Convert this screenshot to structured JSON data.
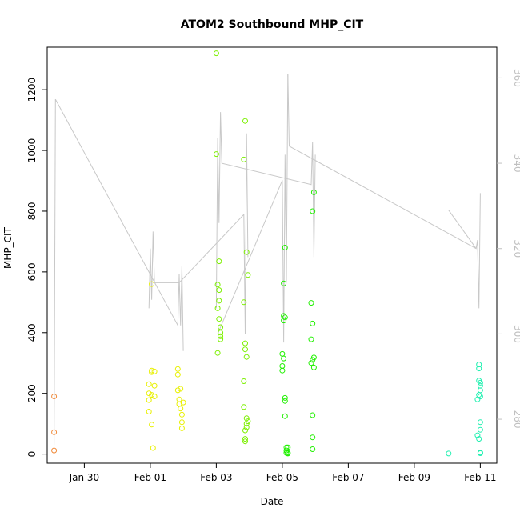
{
  "chart_data": {
    "type": "scatter",
    "title": "ATOM2 Southbound MHP_CIT",
    "xlabel": "Date",
    "ylabel": "MHP_CIT",
    "x_ticks": [
      "Jan 30",
      "Feb 01",
      "Feb 03",
      "Feb 05",
      "Feb 07",
      "Feb 09",
      "Feb 11"
    ],
    "y_ticks": [
      "0",
      "200",
      "400",
      "600",
      "800",
      "1000",
      "1200"
    ],
    "y2_ticks": [
      "280",
      "300",
      "320",
      "340",
      "360"
    ],
    "xlim": [
      "2024-01-28T21:00",
      "2024-02-11T12:00"
    ],
    "ylim": [
      -30,
      1340
    ],
    "y2lim": [
      269.7,
      367.2
    ],
    "grid": false,
    "legend": "none",
    "points": [
      {
        "x": "2024-01-29T02:00",
        "y": 190,
        "color": "#f08a3a"
      },
      {
        "x": "2024-01-29T02:00",
        "y": 72,
        "color": "#f08a3a"
      },
      {
        "x": "2024-01-29T02:00",
        "y": 12,
        "color": "#f08a3a"
      },
      {
        "x": "2024-01-31T23:00",
        "y": 230,
        "color": "#e8f000"
      },
      {
        "x": "2024-01-31T23:00",
        "y": 200,
        "color": "#e8f000"
      },
      {
        "x": "2024-01-31T23:00",
        "y": 178,
        "color": "#e8f000"
      },
      {
        "x": "2024-01-31T23:00",
        "y": 140,
        "color": "#e8f000"
      },
      {
        "x": "2024-02-01T01:00",
        "y": 560,
        "color": "#e8f000"
      },
      {
        "x": "2024-02-01T01:00",
        "y": 275,
        "color": "#e8f000"
      },
      {
        "x": "2024-02-01T01:00",
        "y": 270,
        "color": "#e8f000"
      },
      {
        "x": "2024-02-01T01:00",
        "y": 195,
        "color": "#e8f000"
      },
      {
        "x": "2024-02-01T01:00",
        "y": 97,
        "color": "#e8f000"
      },
      {
        "x": "2024-02-01T02:00",
        "y": 20,
        "color": "#e8f000"
      },
      {
        "x": "2024-02-01T03:00",
        "y": 272,
        "color": "#e8f000"
      },
      {
        "x": "2024-02-01T03:00",
        "y": 225,
        "color": "#e8f000"
      },
      {
        "x": "2024-02-01T03:00",
        "y": 190,
        "color": "#e8f000"
      },
      {
        "x": "2024-02-01T20:00",
        "y": 280,
        "color": "#e8f000"
      },
      {
        "x": "2024-02-01T20:00",
        "y": 262,
        "color": "#e8f000"
      },
      {
        "x": "2024-02-01T20:00",
        "y": 210,
        "color": "#e8f000"
      },
      {
        "x": "2024-02-01T21:00",
        "y": 180,
        "color": "#e8f000"
      },
      {
        "x": "2024-02-01T21:00",
        "y": 165,
        "color": "#e8f000"
      },
      {
        "x": "2024-02-01T22:00",
        "y": 215,
        "color": "#e8f000"
      },
      {
        "x": "2024-02-01T22:00",
        "y": 150,
        "color": "#e8f000"
      },
      {
        "x": "2024-02-01T23:00",
        "y": 130,
        "color": "#e8f000"
      },
      {
        "x": "2024-02-01T23:00",
        "y": 105,
        "color": "#e8f000"
      },
      {
        "x": "2024-02-01T23:00",
        "y": 85,
        "color": "#e8f000"
      },
      {
        "x": "2024-02-02T00:00",
        "y": 170,
        "color": "#e8f000"
      },
      {
        "x": "2024-02-03T00:00",
        "y": 1320,
        "color": "#7cf000"
      },
      {
        "x": "2024-02-03T00:00",
        "y": 988,
        "color": "#7cf000"
      },
      {
        "x": "2024-02-03T01:00",
        "y": 558,
        "color": "#7cf000"
      },
      {
        "x": "2024-02-03T01:00",
        "y": 480,
        "color": "#7cf000"
      },
      {
        "x": "2024-02-03T01:00",
        "y": 333,
        "color": "#7cf000"
      },
      {
        "x": "2024-02-03T02:00",
        "y": 635,
        "color": "#7cf000"
      },
      {
        "x": "2024-02-03T02:00",
        "y": 540,
        "color": "#7cf000"
      },
      {
        "x": "2024-02-03T02:00",
        "y": 505,
        "color": "#7cf000"
      },
      {
        "x": "2024-02-03T02:00",
        "y": 445,
        "color": "#7cf000"
      },
      {
        "x": "2024-02-03T03:00",
        "y": 418,
        "color": "#7cf000"
      },
      {
        "x": "2024-02-03T03:00",
        "y": 400,
        "color": "#7cf000"
      },
      {
        "x": "2024-02-03T03:00",
        "y": 388,
        "color": "#7cf000"
      },
      {
        "x": "2024-02-03T03:00",
        "y": 378,
        "color": "#7cf000"
      },
      {
        "x": "2024-02-03T20:00",
        "y": 970,
        "color": "#7cf000"
      },
      {
        "x": "2024-02-03T20:00",
        "y": 500,
        "color": "#7cf000"
      },
      {
        "x": "2024-02-03T20:00",
        "y": 240,
        "color": "#7cf000"
      },
      {
        "x": "2024-02-03T20:00",
        "y": 155,
        "color": "#7cf000"
      },
      {
        "x": "2024-02-03T21:00",
        "y": 1097,
        "color": "#7cf000"
      },
      {
        "x": "2024-02-03T21:00",
        "y": 365,
        "color": "#7cf000"
      },
      {
        "x": "2024-02-03T21:00",
        "y": 345,
        "color": "#7cf000"
      },
      {
        "x": "2024-02-03T21:00",
        "y": 78,
        "color": "#7cf000"
      },
      {
        "x": "2024-02-03T21:00",
        "y": 50,
        "color": "#7cf000"
      },
      {
        "x": "2024-02-03T21:00",
        "y": 42,
        "color": "#7cf000"
      },
      {
        "x": "2024-02-03T22:00",
        "y": 665,
        "color": "#7cf000"
      },
      {
        "x": "2024-02-03T22:00",
        "y": 320,
        "color": "#7cf000"
      },
      {
        "x": "2024-02-03T22:00",
        "y": 118,
        "color": "#7cf000"
      },
      {
        "x": "2024-02-03T22:00",
        "y": 100,
        "color": "#7cf000"
      },
      {
        "x": "2024-02-03T22:00",
        "y": 88,
        "color": "#7cf000"
      },
      {
        "x": "2024-02-03T23:00",
        "y": 590,
        "color": "#7cf000"
      },
      {
        "x": "2024-02-03T23:00",
        "y": 108,
        "color": "#7cf000"
      },
      {
        "x": "2024-02-05T00:00",
        "y": 330,
        "color": "#20f000"
      },
      {
        "x": "2024-02-05T00:00",
        "y": 290,
        "color": "#20f000"
      },
      {
        "x": "2024-02-05T00:00",
        "y": 275,
        "color": "#20f000"
      },
      {
        "x": "2024-02-05T01:00",
        "y": 562,
        "color": "#20f000"
      },
      {
        "x": "2024-02-05T01:00",
        "y": 455,
        "color": "#20f000"
      },
      {
        "x": "2024-02-05T01:00",
        "y": 440,
        "color": "#20f000"
      },
      {
        "x": "2024-02-05T01:00",
        "y": 315,
        "color": "#20f000"
      },
      {
        "x": "2024-02-05T02:00",
        "y": 680,
        "color": "#20f000"
      },
      {
        "x": "2024-02-05T02:00",
        "y": 450,
        "color": "#20f000"
      },
      {
        "x": "2024-02-05T02:00",
        "y": 185,
        "color": "#20f000"
      },
      {
        "x": "2024-02-05T02:00",
        "y": 175,
        "color": "#20f000"
      },
      {
        "x": "2024-02-05T02:00",
        "y": 125,
        "color": "#20f000"
      },
      {
        "x": "2024-02-05T03:00",
        "y": 22,
        "color": "#20f000"
      },
      {
        "x": "2024-02-05T03:00",
        "y": 12,
        "color": "#20f000"
      },
      {
        "x": "2024-02-05T03:00",
        "y": 4,
        "color": "#20f000"
      },
      {
        "x": "2024-02-05T04:00",
        "y": 22,
        "color": "#20f000"
      },
      {
        "x": "2024-02-05T04:00",
        "y": 4,
        "color": "#20f000"
      },
      {
        "x": "2024-02-05T04:00",
        "y": 2,
        "color": "#20f000"
      },
      {
        "x": "2024-02-05T21:00",
        "y": 498,
        "color": "#20f000"
      },
      {
        "x": "2024-02-05T21:00",
        "y": 378,
        "color": "#20f000"
      },
      {
        "x": "2024-02-05T21:00",
        "y": 300,
        "color": "#20f000"
      },
      {
        "x": "2024-02-05T22:00",
        "y": 800,
        "color": "#20f000"
      },
      {
        "x": "2024-02-05T22:00",
        "y": 430,
        "color": "#20f000"
      },
      {
        "x": "2024-02-05T22:00",
        "y": 310,
        "color": "#20f000"
      },
      {
        "x": "2024-02-05T22:00",
        "y": 128,
        "color": "#20f000"
      },
      {
        "x": "2024-02-05T22:00",
        "y": 55,
        "color": "#20f000"
      },
      {
        "x": "2024-02-05T22:00",
        "y": 16,
        "color": "#20f000"
      },
      {
        "x": "2024-02-05T23:00",
        "y": 862,
        "color": "#20f000"
      },
      {
        "x": "2024-02-05T23:00",
        "y": 318,
        "color": "#20f000"
      },
      {
        "x": "2024-02-05T23:00",
        "y": 285,
        "color": "#20f000"
      },
      {
        "x": "2024-02-10T01:00",
        "y": 2,
        "color": "#20f0b0"
      },
      {
        "x": "2024-02-10T22:00",
        "y": 180,
        "color": "#20f0b0"
      },
      {
        "x": "2024-02-10T22:00",
        "y": 62,
        "color": "#20f0b0"
      },
      {
        "x": "2024-02-10T23:00",
        "y": 295,
        "color": "#20f0b0"
      },
      {
        "x": "2024-02-10T23:00",
        "y": 282,
        "color": "#20f0b0"
      },
      {
        "x": "2024-02-10T23:00",
        "y": 242,
        "color": "#20f0b0"
      },
      {
        "x": "2024-02-10T23:00",
        "y": 195,
        "color": "#20f0b0"
      },
      {
        "x": "2024-02-10T23:00",
        "y": 50,
        "color": "#20f0b0"
      },
      {
        "x": "2024-02-11T00:00",
        "y": 235,
        "color": "#20f0b0"
      },
      {
        "x": "2024-02-11T00:00",
        "y": 225,
        "color": "#20f0b0"
      },
      {
        "x": "2024-02-11T00:00",
        "y": 210,
        "color": "#20f0b0"
      },
      {
        "x": "2024-02-11T00:00",
        "y": 190,
        "color": "#20f0b0"
      },
      {
        "x": "2024-02-11T00:00",
        "y": 105,
        "color": "#20f0b0"
      },
      {
        "x": "2024-02-11T00:00",
        "y": 80,
        "color": "#20f0b0"
      },
      {
        "x": "2024-02-11T00:00",
        "y": 5,
        "color": "#20f0b0"
      },
      {
        "x": "2024-02-11T00:00",
        "y": 3,
        "color": "#20f0b0"
      }
    ],
    "secondary_line": {
      "color": "#c8c8c8",
      "axis": "right",
      "segments": [
        {
          "x": [
            "2024-01-29T02:00",
            "2024-01-29T03:00",
            "2024-02-01T20:00",
            "2024-02-01T21:00",
            "2024-02-01T22:00",
            "2024-02-01T23:00",
            "2024-02-02T00:00"
          ],
          "y": [
            274,
            355,
            302,
            314,
            302,
            316,
            296
          ]
        },
        {
          "x": [
            "2024-01-31T23:00",
            "2024-02-01T00:00",
            "2024-02-01T01:00",
            "2024-02-01T02:00",
            "2024-02-01T03:00",
            "2024-02-01T21:00"
          ],
          "y": [
            306,
            320,
            308,
            324,
            312,
            312
          ]
        },
        {
          "x": [
            "2024-02-01T21:00",
            "2024-02-03T20:00",
            "2024-02-03T21:00",
            "2024-02-03T22:00",
            "2024-02-03T23:00"
          ],
          "y": [
            312,
            328,
            300,
            347,
            318
          ]
        },
        {
          "x": [
            "2024-02-03T00:00",
            "2024-02-03T01:00",
            "2024-02-03T02:00",
            "2024-02-03T03:00",
            "2024-02-03T04:00",
            "2024-02-05T21:00",
            "2024-02-05T22:00",
            "2024-02-05T23:00",
            "2024-02-06T00:00"
          ],
          "y": [
            306,
            346,
            326,
            352,
            340,
            335,
            345,
            318,
            342
          ]
        },
        {
          "x": [
            "2024-02-03T01:00",
            "2024-02-05T00:00",
            "2024-02-05T01:00",
            "2024-02-05T02:00",
            "2024-02-05T03:00",
            "2024-02-05T04:00"
          ],
          "y": [
            300,
            336,
            298,
            342,
            312,
            361
          ]
        },
        {
          "x": [
            "2024-02-05T04:00",
            "2024-02-05T05:00",
            "2024-02-10T21:00",
            "2024-02-10T22:00",
            "2024-02-10T23:00",
            "2024-02-11T00:00"
          ],
          "y": [
            361,
            344,
            320,
            322,
            306,
            333
          ]
        },
        {
          "x": [
            "2024-02-10T01:00",
            "2024-02-10T21:00"
          ],
          "y": [
            329,
            320
          ]
        }
      ]
    }
  }
}
